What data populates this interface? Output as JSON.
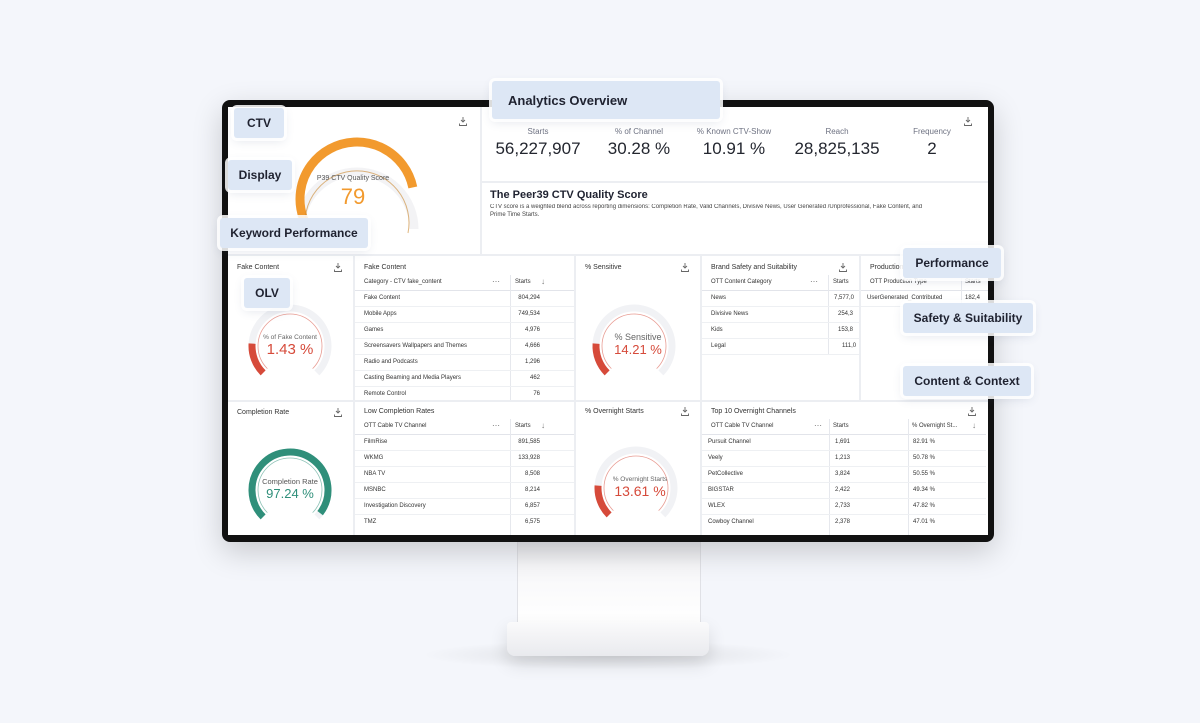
{
  "overlay_tags": {
    "ctv": "CTV",
    "display": "Display",
    "keyword_performance": "Keyword Performance",
    "analytics_overview": "Analytics Overview",
    "olv": "OLV",
    "performance": "Performance",
    "safety_suitability": "Safety & Suitability",
    "content_context": "Content & Context"
  },
  "quality_score": {
    "label": "P39 CTV Quality Score",
    "value": "79",
    "fill_fraction": 0.79
  },
  "kpis": [
    {
      "label": "Starts",
      "value": "56,227,907"
    },
    {
      "label": "% of Channel",
      "value": "30.28 %"
    },
    {
      "label": "% Known CTV-Show",
      "value": "10.91 %"
    },
    {
      "label": "Reach",
      "value": "28,825,135"
    },
    {
      "label": "Frequency",
      "value": "2"
    }
  ],
  "quality_desc": {
    "title": "The Peer39 CTV Quality Score",
    "line1": "CTV score is a weighted blend across reporting dimensions: Completion Rate, Valid Channels, Divisive News, User Generated /Unprofessional, Fake Content, and",
    "line2": "Prime Time Starts."
  },
  "fake_gauge": {
    "title": "Fake Content",
    "label": "% of Fake Content",
    "value": "1.43 %",
    "color": "#d64a3a"
  },
  "fake_table": {
    "title": "Fake Content",
    "col1": "Category - CTV fake_content",
    "col2": "Starts",
    "rows": [
      [
        "Fake Content",
        "804,294"
      ],
      [
        "Mobile Apps",
        "749,534"
      ],
      [
        "Games",
        "4,976"
      ],
      [
        "Screensavers Wallpapers and Themes",
        "4,666"
      ],
      [
        "Radio and Podcasts",
        "1,296"
      ],
      [
        "Casting Beaming and Media Players",
        "462"
      ],
      [
        "Remote Control",
        "76"
      ]
    ]
  },
  "sensitive_gauge": {
    "title": "% Sensitive",
    "label": "% Sensitive",
    "value": "14.21 %",
    "color": "#d64a3a"
  },
  "brand_table": {
    "title": "Brand Safety and Suitability",
    "col1": "OTT Content Category",
    "col2": "Starts",
    "rows": [
      [
        "News",
        "7,577,0"
      ],
      [
        "Divisive News",
        "254,3"
      ],
      [
        "Kids",
        "153,8"
      ],
      [
        "Legal",
        "111,0"
      ]
    ]
  },
  "production_table": {
    "title": "Production",
    "col1": "OTT Production Type",
    "col2": "Starts",
    "rows": [
      [
        "UserGenerated_Contributed",
        "182,4"
      ]
    ]
  },
  "completion_gauge": {
    "title": "Completion Rate",
    "label": "Completion Rate",
    "value": "97.24 %",
    "color": "#2f8f7a"
  },
  "low_completion_table": {
    "title": "Low Completion Rates",
    "col1": "OTT Cable TV Channel",
    "col2": "Starts",
    "rows": [
      [
        "FilmRise",
        "891,585"
      ],
      [
        "WKMG",
        "133,928"
      ],
      [
        "NBA TV",
        "8,508"
      ],
      [
        "MSNBC",
        "8,214"
      ],
      [
        "Investigation Discovery",
        "6,857"
      ],
      [
        "TMZ",
        "6,575"
      ]
    ]
  },
  "overnight_gauge": {
    "title": "% Overnight Starts",
    "label": "% Overnight Starts",
    "value": "13.61 %",
    "color": "#d64a3a"
  },
  "overnight_table": {
    "title": "Top 10 Overnight Channels",
    "col1": "OTT Cable TV Channel",
    "col2": "Starts",
    "col3": "% Overnight St...",
    "rows": [
      [
        "Pursuit Channel",
        "1,691",
        "82.91 %"
      ],
      [
        "Veely",
        "1,213",
        "50.78 %"
      ],
      [
        "PetCollective",
        "3,824",
        "50.55 %"
      ],
      [
        "BIGSTAR",
        "2,422",
        "49.34 %"
      ],
      [
        "WLEX",
        "2,733",
        "47.82 %"
      ],
      [
        "Cowboy Channel",
        "2,378",
        "47.01 %"
      ]
    ]
  },
  "menu_icon": "ellipsis-icon",
  "sort_icon": "arrow-down-icon",
  "download_icon": "download-icon"
}
